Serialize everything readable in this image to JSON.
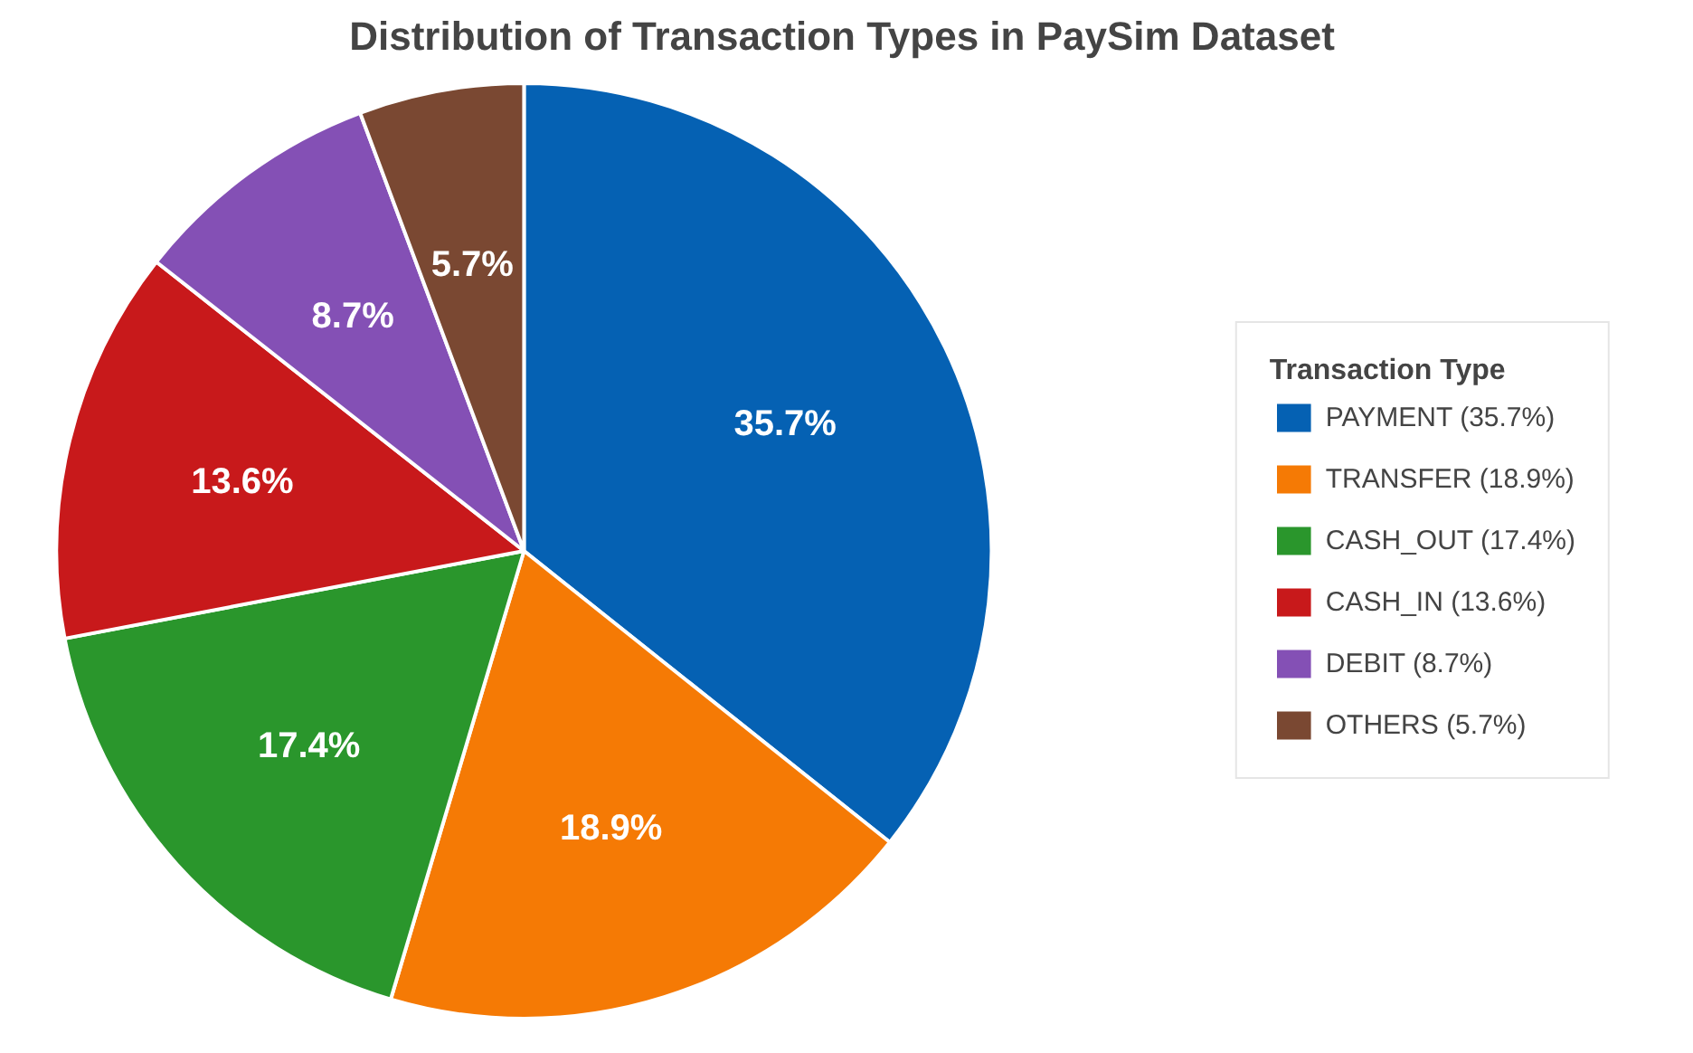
{
  "chart_data": {
    "type": "pie",
    "title": "Distribution of Transaction Types in PaySim Dataset",
    "legend_title": "Transaction Type",
    "categories": [
      "PAYMENT (35.7%)",
      "TRANSFER (18.9%)",
      "CASH_OUT (17.4%)",
      "CASH_IN (13.6%)",
      "DEBIT (8.7%)",
      "OTHERS (5.7%)"
    ],
    "values": [
      35.7,
      18.9,
      17.4,
      13.6,
      8.7,
      5.7
    ],
    "value_labels": [
      "35.7%",
      "18.9%",
      "17.4%",
      "13.6%",
      "8.7%",
      "5.7%"
    ],
    "colors": [
      "#0561b3",
      "#f57a05",
      "#2a962c",
      "#c8191b",
      "#8450b5",
      "#7a4832"
    ],
    "legend": "right"
  }
}
